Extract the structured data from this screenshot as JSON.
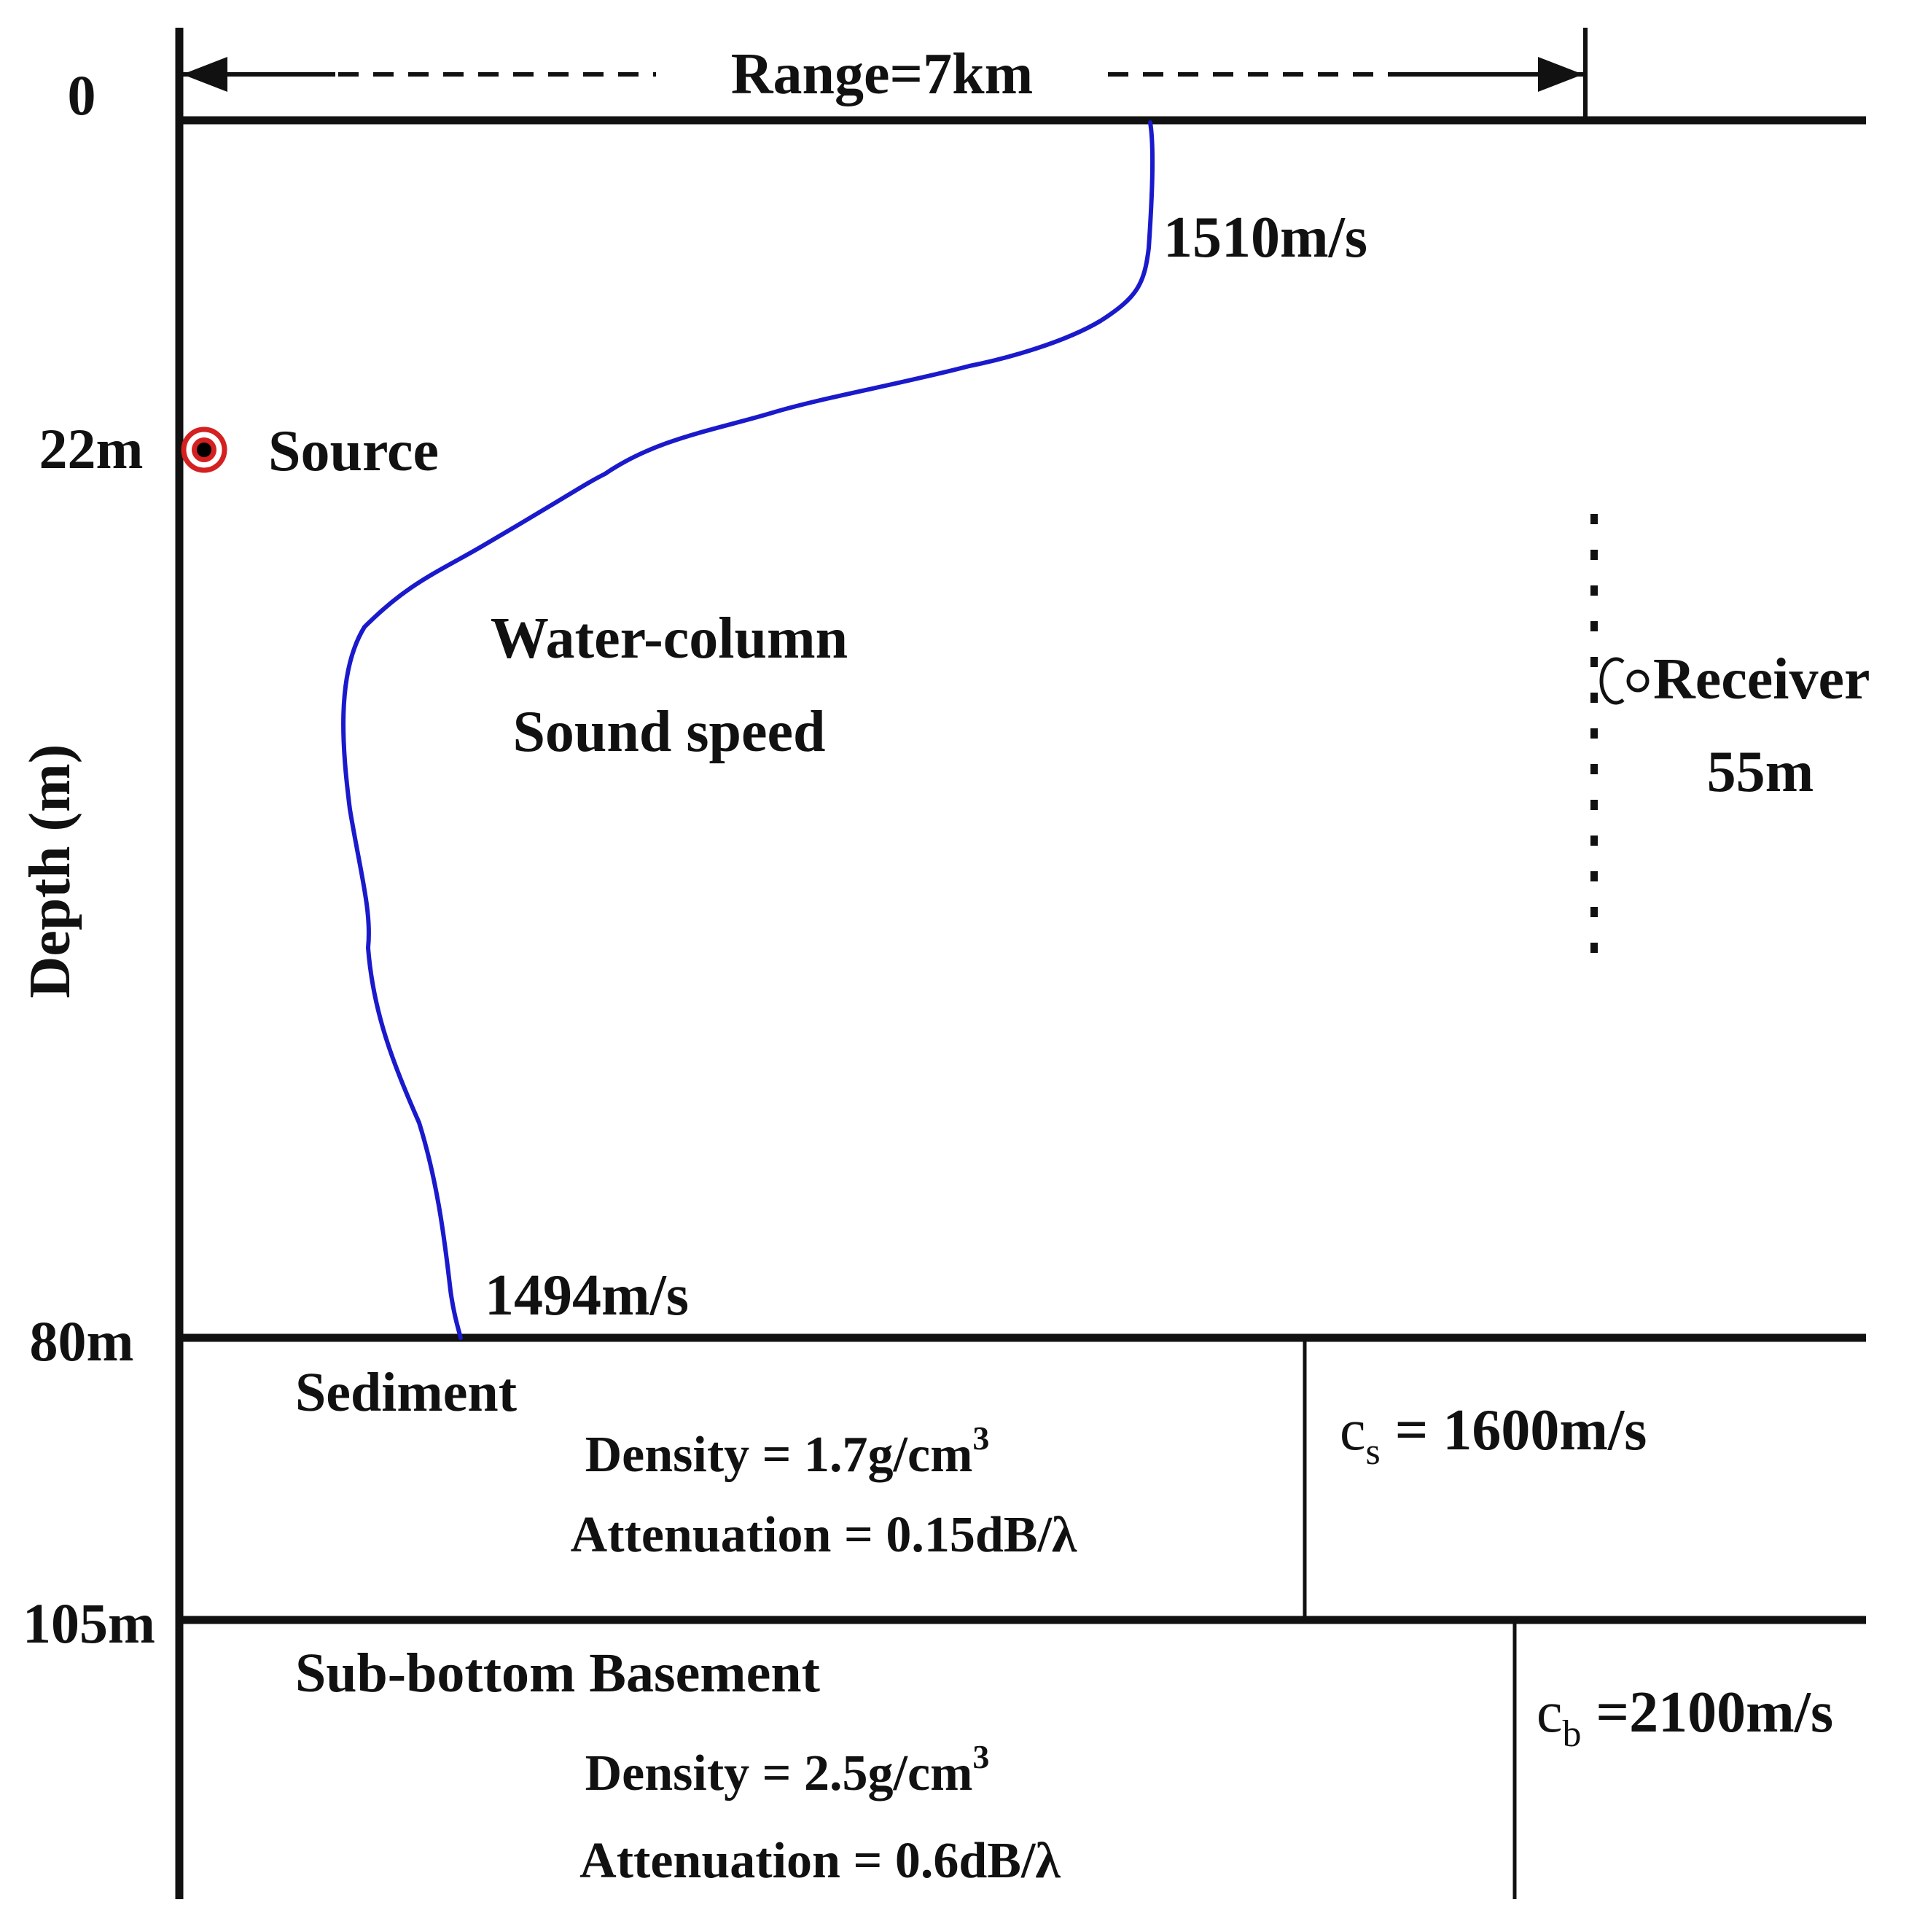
{
  "diagram": {
    "range_label": "Range=7km",
    "depth_axis_label": "Depth (m)",
    "depth_ticks": [
      "0",
      "22m",
      "80m",
      "105m"
    ],
    "source_label": "Source",
    "water_column_label_line1": "Water-column",
    "water_column_label_line2": "Sound speed",
    "sound_speed_top": "1510m/s",
    "sound_speed_bottom": "1494m/s",
    "receiver_label": "Receiver",
    "receiver_depth": "55m",
    "sediment": {
      "title": "Sediment",
      "density_text": "Density = 1.7g/cm",
      "density_exp": "3",
      "attenuation_text": "Attenuation = 0.15dB/λ",
      "speed_symbol": "c",
      "speed_sub": "s",
      "speed_value": " = 1600m/s"
    },
    "basement": {
      "title": "Sub-bottom Basement",
      "density_text": "Density = 2.5g/cm",
      "density_exp": "3",
      "attenuation_text": "Attenuation = 0.6dB/λ",
      "speed_symbol": "c",
      "speed_sub": "b",
      "speed_value": " =2100m/s"
    },
    "colors": {
      "lines": "#111111",
      "profile": "#1a1acc",
      "source_ring": "#d42020",
      "source_dot": "#000000"
    }
  }
}
